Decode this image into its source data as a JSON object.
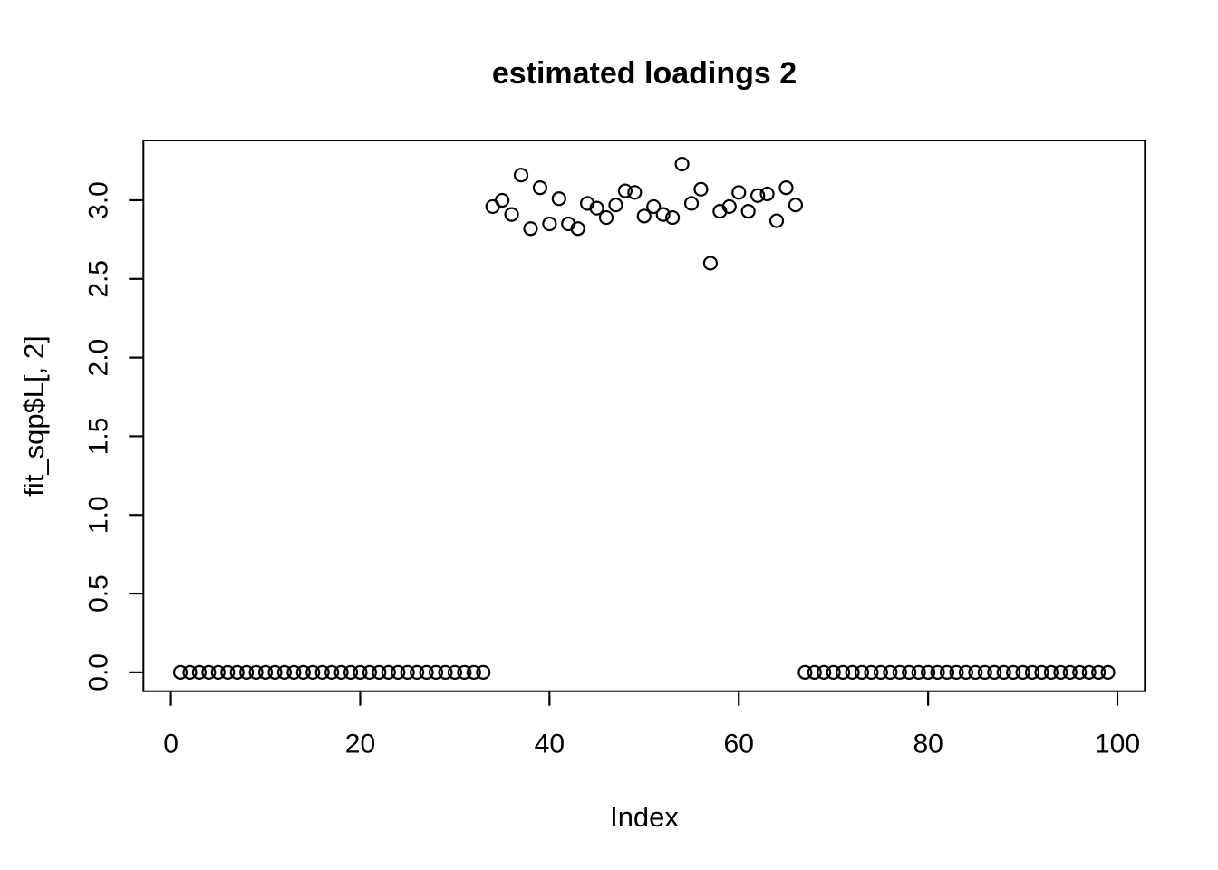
{
  "figure": {
    "background_color": "#ffffff",
    "stroke_color": "#000000"
  },
  "chart_data": {
    "type": "scatter",
    "title": "estimated loadings 2",
    "xlabel": "Index",
    "ylabel": "fit_sqp$L[, 2]",
    "marker": "open-circle",
    "grid": false,
    "legend": "none",
    "xlim": [
      -2.9,
      102.9
    ],
    "ylim": [
      -0.12,
      3.38
    ],
    "x_ticks": [
      0,
      20,
      40,
      60,
      80,
      100
    ],
    "x_tick_labels": [
      "0",
      "20",
      "40",
      "60",
      "80",
      "100"
    ],
    "y_ticks": [
      0.0,
      0.5,
      1.0,
      1.5,
      2.0,
      2.5,
      3.0
    ],
    "y_tick_labels": [
      "0.0",
      "0.5",
      "1.0",
      "1.5",
      "2.0",
      "2.5",
      "3.0"
    ],
    "series": [
      {
        "name": "fit_sqp$L[, 2]",
        "x": [
          1,
          2,
          3,
          4,
          5,
          6,
          7,
          8,
          9,
          10,
          11,
          12,
          13,
          14,
          15,
          16,
          17,
          18,
          19,
          20,
          21,
          22,
          23,
          24,
          25,
          26,
          27,
          28,
          29,
          30,
          31,
          32,
          33,
          34,
          35,
          36,
          37,
          38,
          39,
          40,
          41,
          42,
          43,
          44,
          45,
          46,
          47,
          48,
          49,
          50,
          51,
          52,
          53,
          54,
          55,
          56,
          57,
          58,
          59,
          60,
          61,
          62,
          63,
          64,
          65,
          66,
          67,
          68,
          69,
          70,
          71,
          72,
          73,
          74,
          75,
          76,
          77,
          78,
          79,
          80,
          81,
          82,
          83,
          84,
          85,
          86,
          87,
          88,
          89,
          90,
          91,
          92,
          93,
          94,
          95,
          96,
          97,
          98,
          99
        ],
        "y": [
          0,
          0,
          0,
          0,
          0,
          0,
          0,
          0,
          0,
          0,
          0,
          0,
          0,
          0,
          0,
          0,
          0,
          0,
          0,
          0,
          0,
          0,
          0,
          0,
          0,
          0,
          0,
          0,
          0,
          0,
          0,
          0,
          0,
          2.96,
          3.0,
          2.91,
          3.16,
          2.82,
          3.08,
          2.85,
          3.01,
          2.85,
          2.82,
          2.98,
          2.95,
          2.89,
          2.97,
          3.06,
          3.05,
          2.9,
          2.96,
          2.91,
          2.89,
          3.23,
          2.98,
          3.07,
          2.6,
          2.93,
          2.96,
          3.05,
          2.93,
          3.03,
          3.04,
          2.87,
          3.08,
          2.97,
          0,
          0,
          0,
          0,
          0,
          0,
          0,
          0,
          0,
          0,
          0,
          0,
          0,
          0,
          0,
          0,
          0,
          0,
          0,
          0,
          0,
          0,
          0,
          0,
          0,
          0,
          0,
          0,
          0,
          0,
          0,
          0,
          0
        ]
      }
    ]
  }
}
